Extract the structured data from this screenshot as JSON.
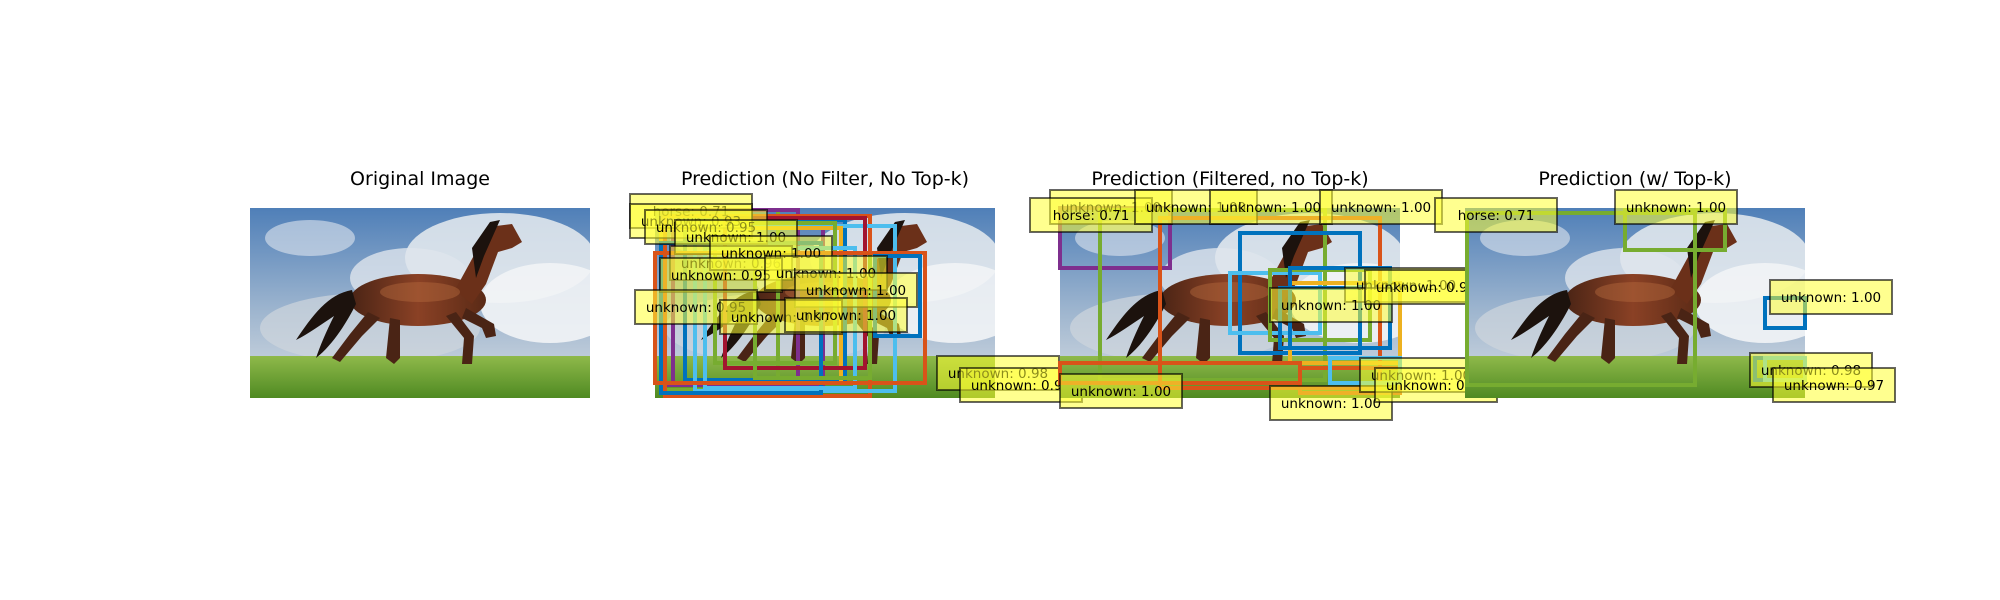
{
  "figure": {
    "panels": [
      {
        "title": "Original Image",
        "detections": []
      },
      {
        "title": "Prediction (No Filter, No Top-k)",
        "detections": [
          {
            "label": "horse: 0.71",
            "color": "#77ac30"
          },
          {
            "label": "unknown: 0.93",
            "color": "#7e2f8e"
          },
          {
            "label": "unknown: 0.95",
            "color": "#7e2f8e"
          },
          {
            "label": "unknown: 1.00",
            "color": "#d95319"
          },
          {
            "label": "unknown: 0.96",
            "color": "#0072bd"
          },
          {
            "label": "unknown: 1.00",
            "color": "#4dbeee"
          },
          {
            "label": "unknown: 0.95",
            "color": "#edb120"
          },
          {
            "label": "unknown: 1.00",
            "color": "#77ac30"
          },
          {
            "label": "unknown: 1.00",
            "color": "#a2142f"
          },
          {
            "label": "unknown: 0.95",
            "color": "#0072bd"
          },
          {
            "label": "unknown: 0.97",
            "color": "#4dbeee"
          },
          {
            "label": "unknown: 1.00",
            "color": "#77ac30"
          },
          {
            "label": "unknown: 0.98",
            "color": "#d95319"
          },
          {
            "label": "unknown: 0.97",
            "color": "#0072bd"
          }
        ]
      },
      {
        "title": "Prediction (Filtered, no Top-k)",
        "detections": [
          {
            "label": "unknown: 1.00",
            "color": "#7e2f8e"
          },
          {
            "label": "horse: 0.71",
            "color": "#77ac30"
          },
          {
            "label": "unknown: 1.00",
            "color": "#d95319"
          },
          {
            "label": "unknown: 1.00",
            "color": "#0072bd"
          },
          {
            "label": "unknown: 1.00",
            "color": "#4dbeee"
          },
          {
            "label": "unknown: 1.00",
            "color": "#edb120"
          },
          {
            "label": "unknown: 1.00",
            "color": "#77ac30"
          },
          {
            "label": "unknown: 1.00",
            "color": "#0072bd"
          },
          {
            "label": "unknown: 1.00",
            "color": "#d95319"
          },
          {
            "label": "unknown: 1.00",
            "color": "#d95319"
          },
          {
            "label": "unknown: 0.98",
            "color": "#0072bd"
          },
          {
            "label": "unknown: 0.97",
            "color": "#4dbeee"
          }
        ]
      },
      {
        "title": "Prediction (w/ Top-k)",
        "detections": [
          {
            "label": "horse: 0.71",
            "color": "#77ac30"
          },
          {
            "label": "unknown: 1.00",
            "color": "#77ac30"
          },
          {
            "label": "unknown: 1.00",
            "color": "#0072bd"
          },
          {
            "label": "unknown: 0.98",
            "color": "#0072bd"
          },
          {
            "label": "unknown: 0.97",
            "color": "#4dbeee"
          }
        ]
      }
    ]
  }
}
